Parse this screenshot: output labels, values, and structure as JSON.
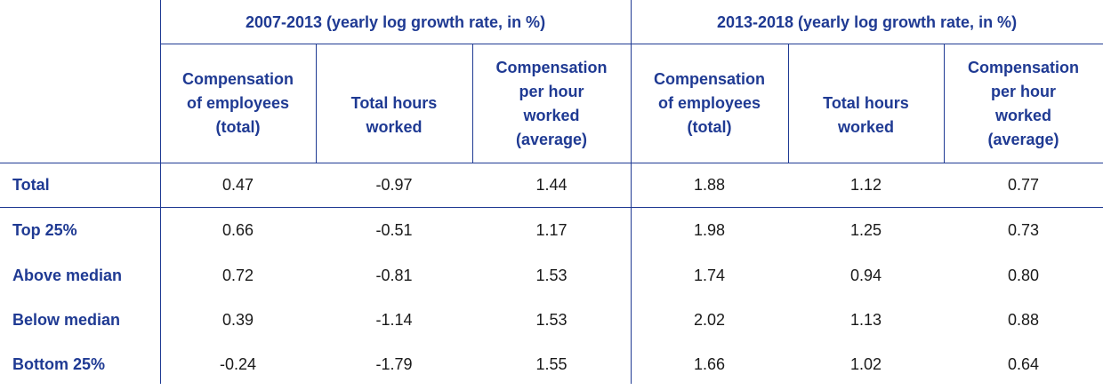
{
  "periods": [
    {
      "label": "2007-2013 (yearly log growth rate, in %)"
    },
    {
      "label": "2013-2018 (yearly log growth rate, in %)"
    }
  ],
  "columns": [
    {
      "lines": [
        "Compensation",
        "of employees",
        "(total)"
      ]
    },
    {
      "lines": [
        "Total hours",
        "worked"
      ]
    },
    {
      "lines": [
        "Compensation",
        "per hour",
        "worked",
        "(average)"
      ]
    },
    {
      "lines": [
        "Compensation",
        "of employees",
        "(total)"
      ]
    },
    {
      "lines": [
        "Total hours",
        "worked"
      ]
    },
    {
      "lines": [
        "Compensation",
        "per hour",
        "worked",
        "(average)"
      ]
    }
  ],
  "rows": [
    {
      "label": "Total",
      "values": [
        "0.47",
        "-0.97",
        "1.44",
        "1.88",
        "1.12",
        "0.77"
      ]
    },
    {
      "label": "Top 25%",
      "values": [
        "0.66",
        "-0.51",
        "1.17",
        "1.98",
        "1.25",
        "0.73"
      ]
    },
    {
      "label": "Above median",
      "values": [
        "0.72",
        "-0.81",
        "1.53",
        "1.74",
        "0.94",
        "0.80"
      ]
    },
    {
      "label": "Below median",
      "values": [
        "0.39",
        "-1.14",
        "1.53",
        "2.02",
        "1.13",
        "0.88"
      ]
    },
    {
      "label": "Bottom 25%",
      "values": [
        "-0.24",
        "-1.79",
        "1.55",
        "1.66",
        "1.02",
        "0.64"
      ]
    }
  ],
  "colors": {
    "header_text": "#1f3a93",
    "rule": "#1f3a93",
    "body_text": "#1a1a1a"
  }
}
